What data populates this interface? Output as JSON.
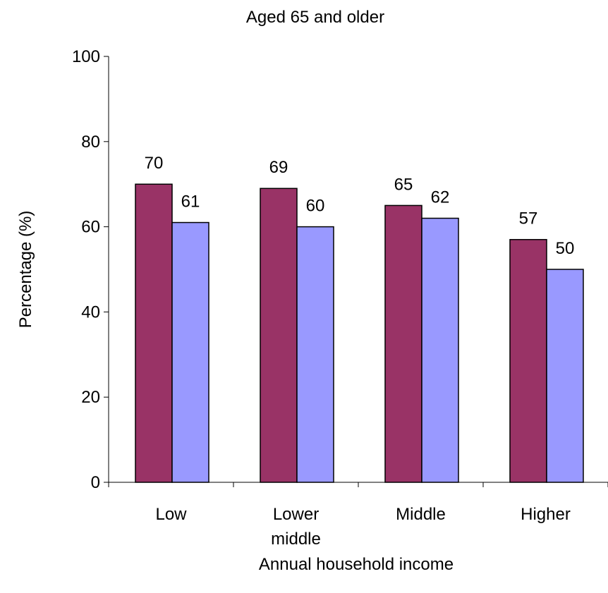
{
  "chart_data": {
    "type": "bar",
    "title": "Aged 65 and older",
    "xlabel": "Annual household income",
    "ylabel": "Percentage (%)",
    "categories": [
      [
        "Low"
      ],
      [
        "Lower",
        "middle"
      ],
      [
        "Middle"
      ],
      [
        "Higher"
      ]
    ],
    "series": [
      {
        "color": "#993366",
        "values": [
          70,
          69,
          65,
          57
        ]
      },
      {
        "color": "#9999FF",
        "values": [
          61,
          60,
          62,
          50
        ]
      }
    ],
    "ylim": [
      0,
      100
    ],
    "yticks": [
      0,
      20,
      40,
      60,
      80,
      100
    ],
    "grid": false,
    "legend": "none",
    "data_labels": true
  }
}
